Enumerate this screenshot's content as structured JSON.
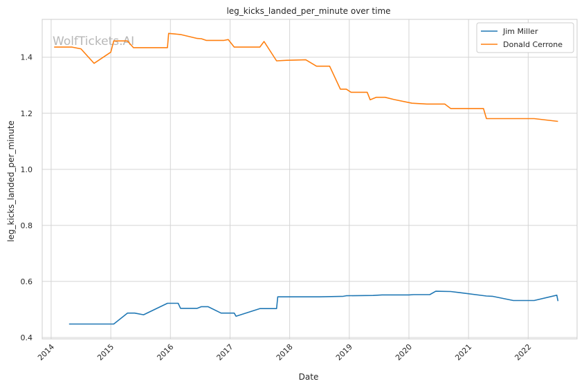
{
  "chart_data": {
    "type": "line",
    "title": "leg_kicks_landed_per_minute over time",
    "xlabel": "Date",
    "ylabel": "leg_kicks_landed_per_minute",
    "watermark": "WolfTickets.AI",
    "xlim": [
      2013.85,
      2022.82
    ],
    "ylim": [
      0.395,
      1.535
    ],
    "xticks": [
      2014,
      2015,
      2016,
      2017,
      2018,
      2019,
      2020,
      2021,
      2022
    ],
    "xtick_labels": [
      "2014",
      "2015",
      "2016",
      "2017",
      "2018",
      "2019",
      "2020",
      "2021",
      "2022"
    ],
    "yticks": [
      0.4,
      0.6,
      0.8,
      1.0,
      1.2,
      1.4
    ],
    "ytick_labels": [
      "0.4",
      "0.6",
      "0.8",
      "1.0",
      "1.2",
      "1.4"
    ],
    "grid": true,
    "legend_position": "top-right",
    "colors": {
      "series_0": "#1f77b4",
      "series_1": "#ff7f0e",
      "grid": "#d4d4d4",
      "spine": "#cccccc"
    },
    "series": [
      {
        "name": "Jim Miller",
        "x": [
          2014.3,
          2015.05,
          2015.28,
          2015.4,
          2015.55,
          2015.95,
          2016.13,
          2016.17,
          2016.45,
          2016.52,
          2016.63,
          2016.85,
          2017.07,
          2017.1,
          2017.5,
          2017.78,
          2017.8,
          2018.2,
          2018.5,
          2018.9,
          2018.95,
          2019.4,
          2019.55,
          2020.0,
          2020.08,
          2020.35,
          2020.45,
          2020.7,
          2020.85,
          2021.3,
          2021.4,
          2021.75,
          2022.1,
          2022.48,
          2022.5
        ],
        "y": [
          0.448,
          0.448,
          0.487,
          0.487,
          0.481,
          0.522,
          0.522,
          0.504,
          0.504,
          0.51,
          0.51,
          0.487,
          0.487,
          0.476,
          0.503,
          0.503,
          0.545,
          0.545,
          0.545,
          0.547,
          0.549,
          0.55,
          0.552,
          0.552,
          0.553,
          0.553,
          0.565,
          0.564,
          0.56,
          0.548,
          0.547,
          0.532,
          0.532,
          0.551,
          0.53
        ]
      },
      {
        "name": "Donald Cerrone",
        "x": [
          2014.05,
          2014.35,
          2014.5,
          2014.72,
          2015.0,
          2015.05,
          2015.28,
          2015.38,
          2015.95,
          2015.97,
          2016.17,
          2016.45,
          2016.52,
          2016.6,
          2016.9,
          2016.97,
          2017.07,
          2017.5,
          2017.57,
          2017.78,
          2017.95,
          2018.27,
          2018.45,
          2018.67,
          2018.85,
          2018.95,
          2019.03,
          2019.3,
          2019.35,
          2019.45,
          2019.6,
          2019.75,
          2020.05,
          2020.3,
          2020.6,
          2020.7,
          2021.25,
          2021.3,
          2022.1,
          2022.5
        ],
        "y": [
          1.436,
          1.436,
          1.43,
          1.378,
          1.418,
          1.458,
          1.458,
          1.434,
          1.434,
          1.485,
          1.481,
          1.467,
          1.466,
          1.46,
          1.46,
          1.463,
          1.436,
          1.436,
          1.456,
          1.387,
          1.389,
          1.391,
          1.368,
          1.368,
          1.286,
          1.286,
          1.275,
          1.275,
          1.248,
          1.257,
          1.257,
          1.249,
          1.236,
          1.233,
          1.233,
          1.217,
          1.217,
          1.181,
          1.181,
          1.171
        ]
      }
    ]
  }
}
